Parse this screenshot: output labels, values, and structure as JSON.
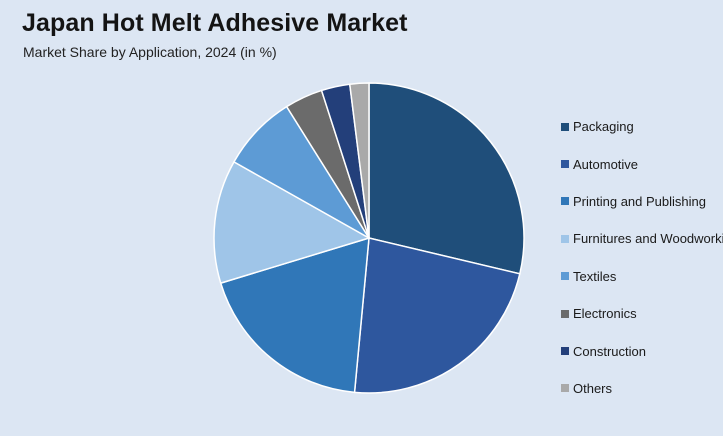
{
  "title": "Japan Hot Melt Adhesive Market",
  "subtitle": "Market Share by Application, 2024 (in %)",
  "chart_data": {
    "type": "pie",
    "categories": [
      "Packaging",
      "Automotive",
      "Printing and Publishing",
      "Furnitures and Woodworking",
      "Textiles",
      "Electronics",
      "Construction",
      "Others"
    ],
    "values": [
      29,
      23,
      19,
      13,
      8,
      4,
      3,
      2
    ],
    "colors": [
      "#1f4e7a",
      "#2e579e",
      "#3077b8",
      "#9fc5e8",
      "#5d9bd5",
      "#6b6b6b",
      "#233f7a",
      "#a9a9a9"
    ],
    "legend_position": "right"
  }
}
